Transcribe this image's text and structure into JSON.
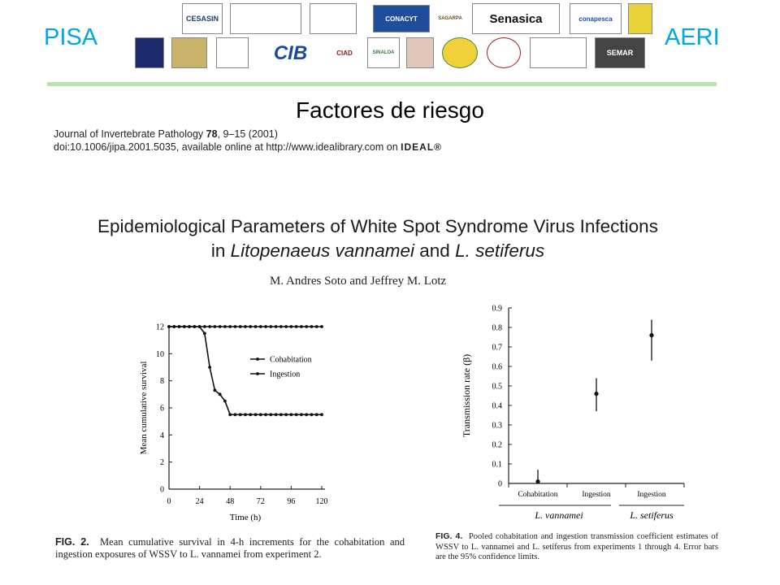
{
  "header": {
    "left_brand": "PISA",
    "right_brand": "AERI",
    "logos": [
      {
        "id": "logo-1",
        "text": "",
        "color": "#3a6db5"
      },
      {
        "id": "logo-2",
        "text": "CESASIN",
        "color": "#1c3f78"
      },
      {
        "id": "logo-3",
        "text": "",
        "color": "#3a6db5"
      },
      {
        "id": "logo-4",
        "text": "",
        "color": "#2c4f99"
      },
      {
        "id": "logo-5",
        "text": "CONACYT",
        "color": "#1f4d9b"
      },
      {
        "id": "logo-6",
        "text": "SAGARPA",
        "color": "#6b4d2a"
      },
      {
        "id": "logo-7",
        "text": "Senasica",
        "color": "#111111"
      },
      {
        "id": "logo-8",
        "text": "conapesca",
        "color": "#1a4ea8"
      },
      {
        "id": "logo-9",
        "text": "",
        "color": "#2a7a3a"
      },
      {
        "id": "logo-10",
        "text": "",
        "color": "#1a2a6a"
      },
      {
        "id": "logo-11",
        "text": "",
        "color": "#8a6a2a"
      },
      {
        "id": "logo-12",
        "text": "",
        "color": "#1a5a9a"
      },
      {
        "id": "logo-13",
        "text": "CIB",
        "color": "#1a4a9a"
      },
      {
        "id": "logo-14",
        "text": "CIAD",
        "color": "#8a1a1a"
      },
      {
        "id": "logo-15",
        "text": "SINALOA",
        "color": "#2a7a3a"
      },
      {
        "id": "logo-16",
        "text": "",
        "color": "#9a3a2a"
      },
      {
        "id": "logo-17",
        "text": "",
        "color": "#2a8a3a"
      },
      {
        "id": "logo-18",
        "text": "",
        "color": "#9a1a1a"
      },
      {
        "id": "logo-19",
        "text": "",
        "color": "#aa2a1a"
      },
      {
        "id": "logo-20",
        "text": "",
        "color": "#1a1a1a"
      },
      {
        "id": "logo-21",
        "text": "SEMAR",
        "color": "#ffffff"
      }
    ]
  },
  "slide_title": "Factores de riesgo",
  "journal": {
    "line1_prefix": "Journal of Invertebrate Pathology ",
    "line1_volume": "78",
    "line1_suffix": ", 9–15 (2001)",
    "line2": "doi:10.1006/jipa.2001.5035, available online at http://www.idealibrary.com on",
    "ideal_logo": "IDEAL®"
  },
  "paper": {
    "title_line1": "Epidemiological Parameters of White Spot Syndrome Virus Infections",
    "title_line2_a": "in ",
    "title_line2_b": "Litopenaeus vannamei",
    "title_line2_c": " and ",
    "title_line2_d": "L. setiferus",
    "authors": "M. Andres Soto and Jeffrey M. Lotz"
  },
  "chart_data": [
    {
      "type": "line",
      "title": "",
      "xlabel": "Time (h)",
      "ylabel": "Mean cumulative survival",
      "xlim": [
        0,
        120
      ],
      "ylim": [
        0,
        12
      ],
      "xticks": [
        "0",
        "24",
        "48",
        "72",
        "96",
        "120"
      ],
      "yticks": [
        "0",
        "2",
        "4",
        "6",
        "8",
        "10",
        "12"
      ],
      "legend_position": "upper-right",
      "x": [
        0,
        4,
        8,
        12,
        16,
        20,
        24,
        28,
        32,
        36,
        40,
        44,
        48,
        52,
        56,
        60,
        64,
        68,
        72,
        76,
        80,
        84,
        88,
        92,
        96,
        100,
        104,
        108,
        112,
        116,
        120
      ],
      "series": [
        {
          "name": "Cohabitation",
          "values": [
            12,
            12,
            12,
            12,
            12,
            12,
            12,
            12,
            12,
            12,
            12,
            12,
            12,
            12,
            12,
            12,
            12,
            12,
            12,
            12,
            12,
            12,
            12,
            12,
            12,
            12,
            12,
            12,
            12,
            12,
            12
          ]
        },
        {
          "name": "Ingestion",
          "values": [
            12,
            12,
            12,
            12,
            12,
            12,
            12,
            11.5,
            9,
            7.3,
            7,
            6.5,
            5.5,
            5.5,
            5.5,
            5.5,
            5.5,
            5.5,
            5.5,
            5.5,
            5.5,
            5.5,
            5.5,
            5.5,
            5.5,
            5.5,
            5.5,
            5.5,
            5.5,
            5.5,
            5.5
          ]
        }
      ],
      "caption_label": "FIG. 2.",
      "caption_text": "Mean cumulative survival in 4-h increments for the cohabitation and ingestion exposures of WSSV to L. vannamei from experiment 2."
    },
    {
      "type": "scatter",
      "title": "",
      "ylabel": "Transmission rate (β)",
      "ylim": [
        0,
        0.9
      ],
      "yticks": [
        "0",
        "0.1",
        "0.2",
        "0.3",
        "0.4",
        "0.5",
        "0.6",
        "0.7",
        "0.8",
        "0.9"
      ],
      "categories": [
        "Cohabitation",
        "Ingestion",
        "Ingestion"
      ],
      "groups": [
        "L. vannamei",
        "L. setiferus"
      ],
      "values": [
        0.01,
        0.46,
        0.76
      ],
      "error_low": [
        0.0,
        0.37,
        0.63
      ],
      "error_high": [
        0.07,
        0.54,
        0.84
      ],
      "caption_label": "FIG. 4.",
      "caption_text": "Pooled cohabitation and ingestion transmission coefficient estimates of WSSV to L. vannamei and L. setiferus from experiments 1 through 4. Error bars are the 95% confidence limits."
    }
  ]
}
